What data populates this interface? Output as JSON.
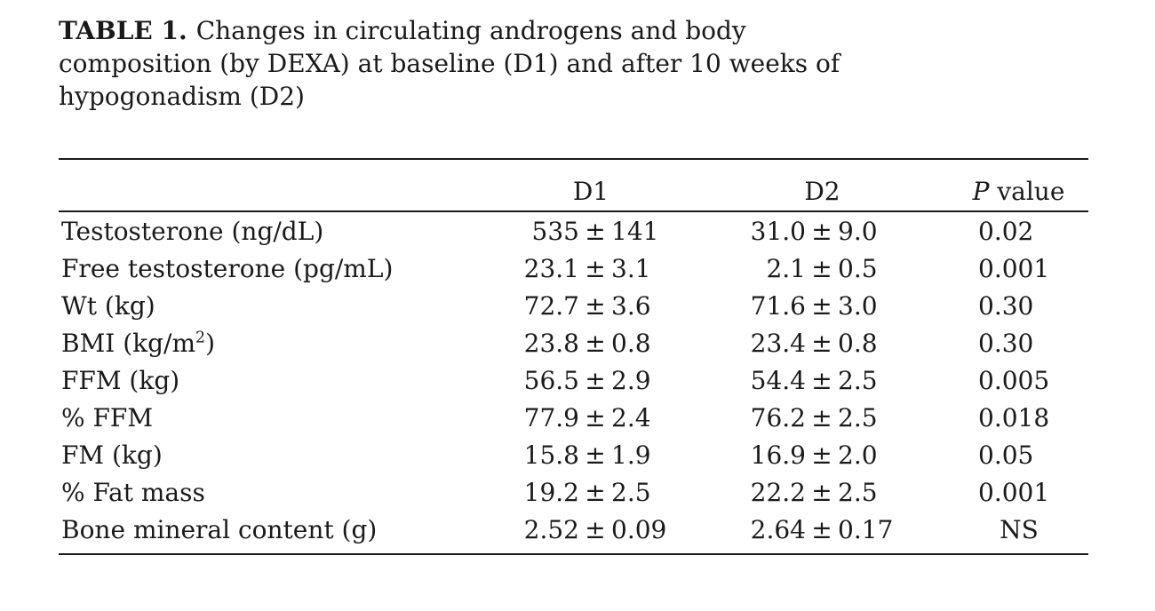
{
  "table": {
    "label": "TABLE 1.",
    "title_lines": [
      "Changes in circulating androgens and body",
      "composition (by DEXA) at baseline (D1) and after 10 weeks of",
      "hypogonadism (D2)"
    ],
    "columns": {
      "metric": "",
      "d1": "D1",
      "d2": "D2",
      "p_italic": "P",
      "p_rest": " value"
    },
    "rows": [
      {
        "label": "Testosterone (ng/dL)",
        "d1": "535 ± 141",
        "d2": "31.0 ± 9.0",
        "p": "0.02"
      },
      {
        "label": "Free testosterone (pg/mL)",
        "d1": "23.1 ± 3.1",
        "d2": "2.1 ± 0.5",
        "p": "0.001"
      },
      {
        "label": "Wt (kg)",
        "d1": "72.7 ± 3.6",
        "d2": "71.6 ± 3.0",
        "p": "0.30"
      },
      {
        "label": "BMI (kg/m²)",
        "d1": "23.8 ± 0.8",
        "d2": "23.4 ± 0.8",
        "p": "0.30"
      },
      {
        "label": "FFM (kg)",
        "d1": "56.5 ± 2.9",
        "d2": "54.4 ± 2.5",
        "p": "0.005"
      },
      {
        "label": "% FFM",
        "d1": "77.9 ± 2.4",
        "d2": "76.2 ± 2.5",
        "p": "0.018"
      },
      {
        "label": "FM (kg)",
        "d1": "15.8 ± 1.9",
        "d2": "16.9 ± 2.0",
        "p": "0.05"
      },
      {
        "label": "% Fat mass",
        "d1": "19.2 ± 2.5",
        "d2": "22.2 ± 2.5",
        "p": "0.001"
      },
      {
        "label": "Bone mineral content (g)",
        "d1": "2.52 ± 0.09",
        "d2": "2.64 ± 0.17",
        "p": "NS"
      }
    ],
    "text_color": "#1a1a1a",
    "rule_color": "#1a1a1a",
    "background_color": "#ffffff"
  }
}
